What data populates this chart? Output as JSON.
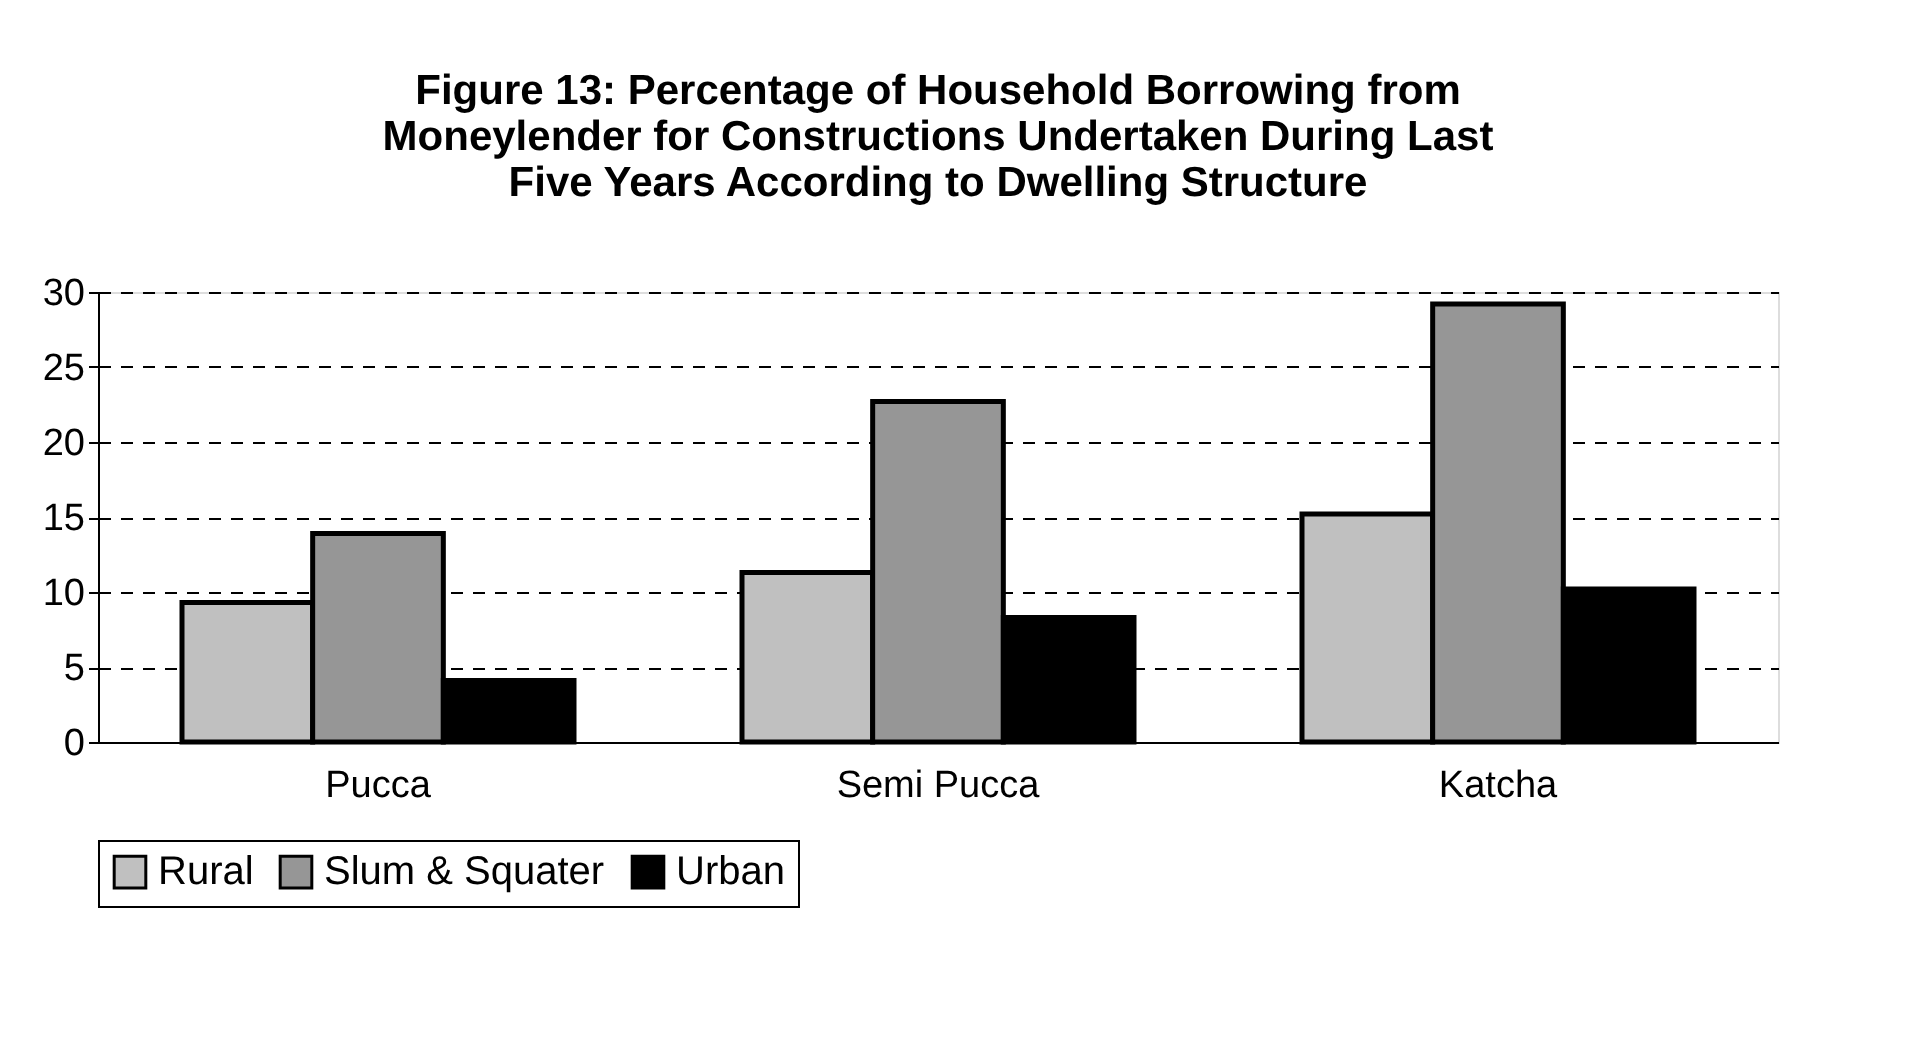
{
  "chart_data": {
    "type": "bar",
    "title": "Figure 13: Percentage of Household Borrowing from Moneylender for Constructions Undertaken During Last Five Years According to Dwelling Structure",
    "categories": [
      "Pucca",
      "Semi Pucca",
      "Katcha"
    ],
    "series": [
      {
        "name": "Rural",
        "color": "#c0c0c0",
        "values": [
          9.3,
          11.3,
          15.2
        ]
      },
      {
        "name": "Slum & Squater",
        "color": "#969696",
        "values": [
          13.9,
          22.7,
          29.2
        ]
      },
      {
        "name": "Urban",
        "color": "#000000",
        "values": [
          4.1,
          8.3,
          10.2
        ]
      }
    ],
    "ylim": [
      0,
      30
    ],
    "yticks": [
      0,
      5,
      10,
      15,
      20,
      25,
      30
    ],
    "grid": "y",
    "legend": "bottom"
  }
}
